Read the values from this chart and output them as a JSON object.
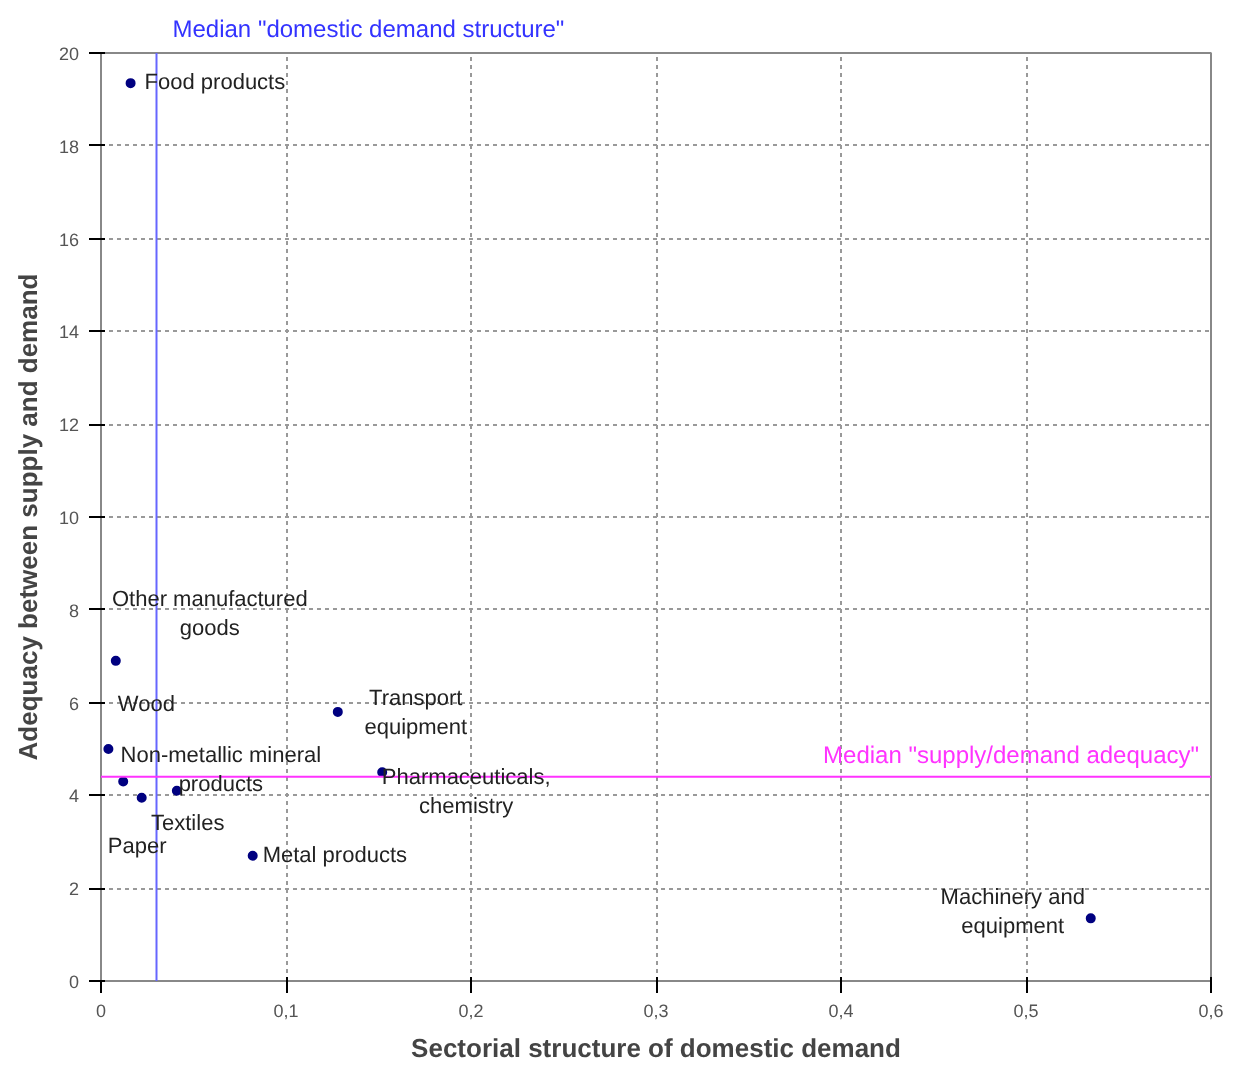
{
  "chart_data": {
    "type": "scatter",
    "xlabel": "Sectorial structure of domestic demand",
    "ylabel": "Adequacy between supply and demand",
    "x": [
      0.016,
      0.008,
      0.004,
      0.012,
      0.022,
      0.041,
      0.082,
      0.128,
      0.152,
      0.535
    ],
    "series": [
      {
        "color": "#000080",
        "values": [
          19.35,
          6.9,
          5.0,
          4.3,
          3.95,
          4.1,
          2.7,
          5.8,
          4.5,
          1.35
        ]
      }
    ],
    "marker": "circle",
    "grid": true,
    "xlim": [
      0,
      0.6
    ],
    "xticks": [
      0,
      {
        "value": 0.1,
        "label": "0,1"
      },
      {
        "value": 0.2,
        "label": "0,2"
      },
      {
        "value": 0.3,
        "label": "0,3"
      },
      {
        "value": 0.4,
        "label": "0,4"
      },
      {
        "value": 0.5,
        "label": "0,5"
      },
      {
        "value": 0.6,
        "label": "0,6"
      }
    ],
    "ylim": [
      0,
      20
    ],
    "yticks": [
      0,
      2,
      4,
      6,
      8,
      10,
      12,
      14,
      16,
      18,
      20
    ],
    "ref_lines": [
      {
        "axis": "x",
        "value": 0.03,
        "label": "Median \"domestic demand structure\"",
        "color": "#6666ff"
      },
      {
        "axis": "y",
        "value": 4.4,
        "label": "Median \"supply/demand adequacy\"",
        "color": "#ff33ff"
      }
    ],
    "annotations": [
      {
        "text": "Food products",
        "x": 0.016,
        "y": 19.35
      },
      {
        "text": "Other manufactured\ngoods",
        "x": 0.008,
        "y": 6.9
      },
      {
        "text": "Wood",
        "x": 0.004,
        "y": 5.0
      },
      {
        "text": "Non-metallic mineral\nproducts",
        "x": 0.041,
        "y": 4.1
      },
      {
        "text": "Textiles",
        "x": 0.022,
        "y": 3.95
      },
      {
        "text": "Paper",
        "x": 0.012,
        "y": 4.3
      },
      {
        "text": "Metal products",
        "x": 0.082,
        "y": 2.7
      },
      {
        "text": "Transport\nequipment",
        "x": 0.128,
        "y": 5.8
      },
      {
        "text": "Pharmaceuticals,\nchemistry",
        "x": 0.152,
        "y": 4.5
      },
      {
        "text": "Machinery and\nequipment",
        "x": 0.535,
        "y": 1.35
      }
    ]
  }
}
